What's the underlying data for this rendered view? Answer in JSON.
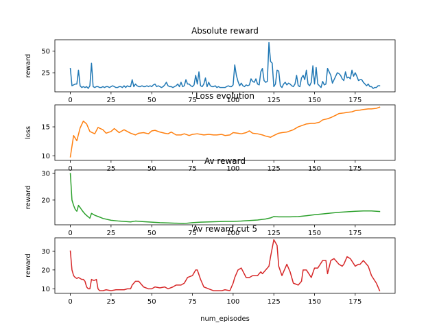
{
  "figure": {
    "xlabel": "num_episodes"
  },
  "chart_data": [
    {
      "type": "line",
      "title": "Absolute reward",
      "xlabel": "",
      "ylabel": "reward",
      "color": "#1f77b4",
      "xlim": [
        -9.5,
        199.5
      ],
      "ylim": [
        3,
        63
      ],
      "xticks": [
        0,
        25,
        50,
        75,
        100,
        125,
        150,
        175
      ],
      "yticks": [
        25,
        50
      ],
      "x": [
        0,
        1,
        2,
        3,
        4,
        5,
        6,
        7,
        8,
        9,
        10,
        11,
        12,
        13,
        14,
        15,
        16,
        17,
        18,
        19,
        20,
        21,
        22,
        23,
        24,
        25,
        26,
        27,
        28,
        29,
        30,
        31,
        32,
        33,
        34,
        35,
        36,
        37,
        38,
        39,
        40,
        41,
        42,
        43,
        44,
        45,
        46,
        47,
        48,
        49,
        50,
        51,
        52,
        53,
        54,
        55,
        56,
        57,
        58,
        59,
        60,
        61,
        62,
        63,
        64,
        65,
        66,
        67,
        68,
        69,
        70,
        71,
        72,
        73,
        74,
        75,
        76,
        77,
        78,
        79,
        80,
        81,
        82,
        83,
        84,
        85,
        86,
        87,
        88,
        89,
        90,
        91,
        92,
        93,
        94,
        95,
        96,
        97,
        98,
        99,
        100,
        101,
        102,
        103,
        104,
        105,
        106,
        107,
        108,
        109,
        110,
        111,
        112,
        113,
        114,
        115,
        116,
        117,
        118,
        119,
        120,
        121,
        122,
        123,
        124,
        125,
        126,
        127,
        128,
        129,
        130,
        131,
        132,
        133,
        134,
        135,
        136,
        137,
        138,
        139,
        140,
        141,
        142,
        143,
        144,
        145,
        146,
        147,
        148,
        149,
        150,
        151,
        152,
        153,
        154,
        155,
        156,
        157,
        158,
        159,
        160,
        161,
        162,
        163,
        164,
        165,
        166,
        167,
        168,
        169,
        170,
        171,
        172,
        173,
        174,
        175,
        176,
        177,
        178,
        179,
        180,
        181,
        182,
        183,
        184,
        185,
        186,
        187,
        188,
        189,
        190
      ],
      "values": [
        30,
        10,
        11,
        12,
        12,
        28,
        10,
        8,
        9,
        8,
        9,
        7,
        10,
        36,
        9,
        8,
        9,
        9,
        8,
        8,
        9,
        8,
        9,
        9,
        8,
        9,
        10,
        9,
        8,
        8,
        9,
        9,
        8,
        10,
        8,
        10,
        9,
        9,
        17,
        9,
        12,
        10,
        9,
        9,
        10,
        9,
        9,
        10,
        9,
        10,
        9,
        11,
        12,
        9,
        10,
        9,
        8,
        9,
        11,
        14,
        10,
        9,
        9,
        8,
        9,
        10,
        12,
        9,
        14,
        9,
        10,
        17,
        12,
        12,
        10,
        9,
        11,
        22,
        12,
        26,
        10,
        9,
        12,
        19,
        9,
        14,
        10,
        9,
        9,
        10,
        8,
        9,
        8,
        8,
        8,
        8,
        9,
        10,
        9,
        9,
        11,
        34,
        22,
        15,
        10,
        13,
        10,
        9,
        11,
        10,
        11,
        18,
        15,
        14,
        18,
        12,
        11,
        26,
        30,
        16,
        14,
        15,
        60,
        38,
        36,
        9,
        12,
        28,
        27,
        10,
        8,
        12,
        14,
        11,
        13,
        12,
        10,
        9,
        12,
        22,
        10,
        9,
        19,
        22,
        17,
        28,
        12,
        10,
        14,
        33,
        12,
        31,
        12,
        10,
        8,
        15,
        11,
        12,
        30,
        26,
        22,
        13,
        17,
        21,
        25,
        24,
        22,
        18,
        16,
        26,
        19,
        20,
        18,
        28,
        21,
        25,
        21,
        16,
        17,
        17,
        14,
        12,
        10,
        12,
        9,
        9,
        7,
        8,
        8,
        10,
        10
      ]
    },
    {
      "type": "line",
      "title": "Loss evolution",
      "xlabel": "",
      "ylabel": "loss",
      "color": "#ff7f0e",
      "xlim": [
        -9.5,
        199.5
      ],
      "ylim": [
        9.2,
        18.8
      ],
      "xticks": [
        0,
        25,
        50,
        75,
        100,
        125,
        150,
        175
      ],
      "yticks": [
        10,
        15
      ],
      "x": [
        0,
        2,
        4,
        6,
        8,
        10,
        12,
        15,
        17,
        20,
        22,
        25,
        27,
        30,
        33,
        35,
        37,
        40,
        42,
        45,
        48,
        50,
        52,
        55,
        58,
        60,
        62,
        65,
        68,
        70,
        73,
        75,
        78,
        80,
        82,
        85,
        88,
        90,
        93,
        95,
        98,
        100,
        103,
        105,
        108,
        110,
        112,
        115,
        118,
        120,
        123,
        125,
        128,
        130,
        133,
        135,
        137,
        140,
        143,
        145,
        148,
        150,
        153,
        155,
        158,
        160,
        163,
        165,
        168,
        170,
        173,
        175,
        178,
        180,
        183,
        185,
        188,
        190
      ],
      "values": [
        9.8,
        13.5,
        12.6,
        14.8,
        16.0,
        15.5,
        14.2,
        13.8,
        14.9,
        14.5,
        13.9,
        14.2,
        14.7,
        14.0,
        14.5,
        14.2,
        13.9,
        13.6,
        13.9,
        14.0,
        13.8,
        14.3,
        14.4,
        14.1,
        13.9,
        13.8,
        14.1,
        13.6,
        13.6,
        13.8,
        13.5,
        13.7,
        13.8,
        13.7,
        13.6,
        13.7,
        13.6,
        13.6,
        13.7,
        13.5,
        13.6,
        14.0,
        13.9,
        13.8,
        14.0,
        14.3,
        13.9,
        13.8,
        13.6,
        13.4,
        13.2,
        13.5,
        13.9,
        14.0,
        14.1,
        14.3,
        14.5,
        15.0,
        15.3,
        15.5,
        15.6,
        15.6,
        15.8,
        16.2,
        16.4,
        16.6,
        17.0,
        17.3,
        17.4,
        17.5,
        17.6,
        17.8,
        17.9,
        18.0,
        18.1,
        18.1,
        18.2,
        18.4
      ]
    },
    {
      "type": "line",
      "title": "Av reward",
      "xlabel": "",
      "ylabel": "reward",
      "color": "#2ca02c",
      "xlim": [
        -9.5,
        199.5
      ],
      "ylim": [
        10.7,
        31.3
      ],
      "xticks": [
        0,
        25,
        50,
        75,
        100,
        125,
        150,
        175
      ],
      "yticks": [
        20,
        30
      ],
      "x": [
        0,
        1,
        2,
        3,
        4,
        5,
        6,
        7,
        8,
        9,
        10,
        11,
        12,
        13,
        15,
        18,
        20,
        25,
        30,
        35,
        37,
        40,
        45,
        50,
        55,
        60,
        65,
        70,
        75,
        80,
        85,
        90,
        95,
        100,
        105,
        110,
        115,
        120,
        123,
        125,
        128,
        130,
        135,
        140,
        145,
        150,
        155,
        160,
        165,
        170,
        175,
        180,
        185,
        190
      ],
      "values": [
        30.0,
        20.0,
        18.0,
        16.5,
        15.8,
        18.0,
        17.2,
        16.3,
        15.5,
        14.8,
        14.2,
        13.7,
        13.2,
        15.0,
        14.3,
        13.6,
        13.1,
        12.4,
        12.1,
        11.9,
        11.8,
        12.1,
        11.9,
        11.7,
        11.5,
        11.4,
        11.3,
        11.2,
        11.5,
        11.7,
        11.8,
        11.9,
        12.0,
        12.0,
        12.1,
        12.3,
        12.5,
        12.9,
        13.3,
        13.8,
        13.7,
        13.7,
        13.7,
        13.8,
        14.1,
        14.5,
        14.8,
        15.1,
        15.4,
        15.6,
        15.8,
        15.9,
        15.9,
        15.7
      ]
    },
    {
      "type": "line",
      "title": "Av reward cut 5",
      "xlabel": "num_episodes",
      "ylabel": "reward",
      "color": "#d62728",
      "xlim": [
        -9.5,
        199.5
      ],
      "ylim": [
        7.6,
        37.0
      ],
      "xticks": [
        0,
        25,
        50,
        75,
        100,
        125,
        150,
        175
      ],
      "yticks": [
        10,
        20,
        30
      ],
      "x": [
        0,
        1,
        2,
        3,
        4,
        5,
        6,
        7,
        8,
        9,
        10,
        11,
        12,
        13,
        14,
        15,
        16,
        17,
        18,
        19,
        20,
        22,
        25,
        28,
        30,
        33,
        35,
        37,
        38,
        40,
        42,
        45,
        48,
        50,
        52,
        55,
        58,
        60,
        63,
        65,
        68,
        70,
        72,
        75,
        77,
        78,
        80,
        82,
        85,
        88,
        90,
        93,
        95,
        98,
        100,
        101,
        103,
        105,
        108,
        110,
        112,
        115,
        117,
        118,
        120,
        122,
        123,
        125,
        127,
        128,
        130,
        133,
        135,
        137,
        140,
        142,
        143,
        145,
        148,
        150,
        152,
        155,
        157,
        158,
        160,
        162,
        165,
        167,
        168,
        170,
        172,
        175,
        177,
        178,
        180,
        183,
        185,
        188,
        190
      ],
      "values": [
        30,
        20,
        17,
        16,
        15.5,
        16,
        15.5,
        15,
        15,
        14,
        11,
        10,
        10,
        15,
        14.5,
        14.5,
        15,
        10,
        9,
        9,
        9,
        9.5,
        9,
        9.5,
        9.5,
        9.5,
        10,
        10,
        12,
        14,
        14,
        11,
        10,
        10,
        11,
        10.5,
        11,
        10,
        11,
        12,
        12,
        13,
        16,
        17,
        20,
        20,
        15,
        11,
        10,
        9,
        9,
        9,
        9.5,
        9,
        13,
        16,
        20,
        21,
        16,
        16,
        17,
        17,
        19,
        18,
        20,
        22,
        27,
        36,
        33,
        22,
        17,
        23,
        19,
        13,
        12,
        14,
        20,
        20,
        16,
        21,
        21,
        25,
        25,
        18,
        25,
        26,
        23,
        22,
        23,
        27,
        26,
        22,
        23,
        23,
        25,
        22,
        17,
        13,
        9
      ]
    }
  ]
}
